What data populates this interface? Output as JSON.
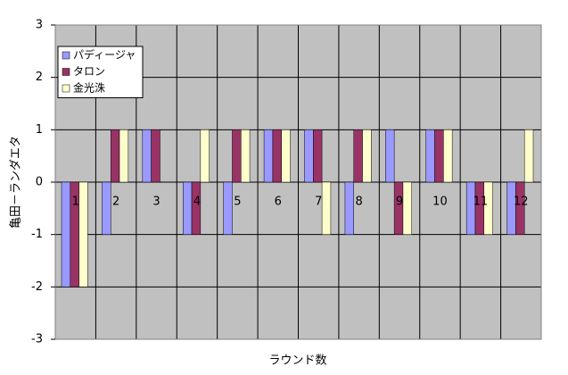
{
  "chart_data": {
    "type": "bar",
    "x_label": "ラウンド数",
    "y_label": "亀田－ランダエタ",
    "categories": [
      "1",
      "2",
      "3",
      "4",
      "5",
      "6",
      "7",
      "8",
      "9",
      "10",
      "11",
      "12"
    ],
    "series": [
      {
        "name": "パディージャ",
        "color": "#9999ff",
        "values": [
          -2,
          -1,
          1,
          -1,
          -1,
          1,
          1,
          -1,
          1,
          1,
          -1,
          -1
        ]
      },
      {
        "name": "タロン",
        "color": "#993366",
        "values": [
          -2,
          1,
          1,
          -1,
          1,
          1,
          1,
          1,
          -1,
          1,
          -1,
          -1
        ]
      },
      {
        "name": "金光洙",
        "color": "#ffffcc",
        "values": [
          -2,
          1,
          0,
          1,
          1,
          1,
          -1,
          1,
          -1,
          1,
          -1,
          1
        ]
      }
    ],
    "ylim": [
      -3,
      3
    ],
    "yticks": [
      -3,
      -2,
      -1,
      0,
      1,
      2,
      3
    ],
    "grid": true,
    "legend": "upper left"
  }
}
